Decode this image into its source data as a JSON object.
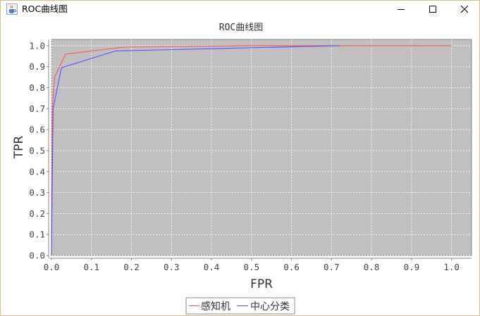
{
  "window": {
    "title": "ROC曲线图",
    "icon": "java-cup-icon",
    "controls": [
      "minimize-icon",
      "maximize-icon",
      "close-icon"
    ]
  },
  "chart_data": {
    "type": "line",
    "title": "ROC曲线图",
    "xlabel": "FPR",
    "ylabel": "TPR",
    "xlim": [
      0,
      1.05
    ],
    "ylim": [
      0,
      1.03
    ],
    "x_ticks": [
      "0.0",
      "0.1",
      "0.2",
      "0.3",
      "0.4",
      "0.5",
      "0.6",
      "0.7",
      "0.8",
      "0.9",
      "1.0"
    ],
    "y_ticks": [
      "0.0",
      "0.1",
      "0.2",
      "0.3",
      "0.4",
      "0.5",
      "0.6",
      "0.7",
      "0.8",
      "0.9",
      "1.0"
    ],
    "grid": true,
    "plot_background": "#c0c0c0",
    "legend_position": "bottom-center",
    "series": [
      {
        "name": "感知机",
        "color": "#ff5555",
        "points": [
          [
            0.0,
            0.0
          ],
          [
            0.002,
            0.7
          ],
          [
            0.008,
            0.85
          ],
          [
            0.035,
            0.96
          ],
          [
            0.18,
            0.993
          ],
          [
            0.5,
            1.0
          ],
          [
            1.0,
            1.0
          ]
        ]
      },
      {
        "name": "中心分类",
        "color": "#5555ff",
        "points": [
          [
            0.0,
            0.0
          ],
          [
            0.004,
            0.7
          ],
          [
            0.025,
            0.895
          ],
          [
            0.16,
            0.975
          ],
          [
            0.72,
            1.0
          ]
        ]
      }
    ]
  }
}
